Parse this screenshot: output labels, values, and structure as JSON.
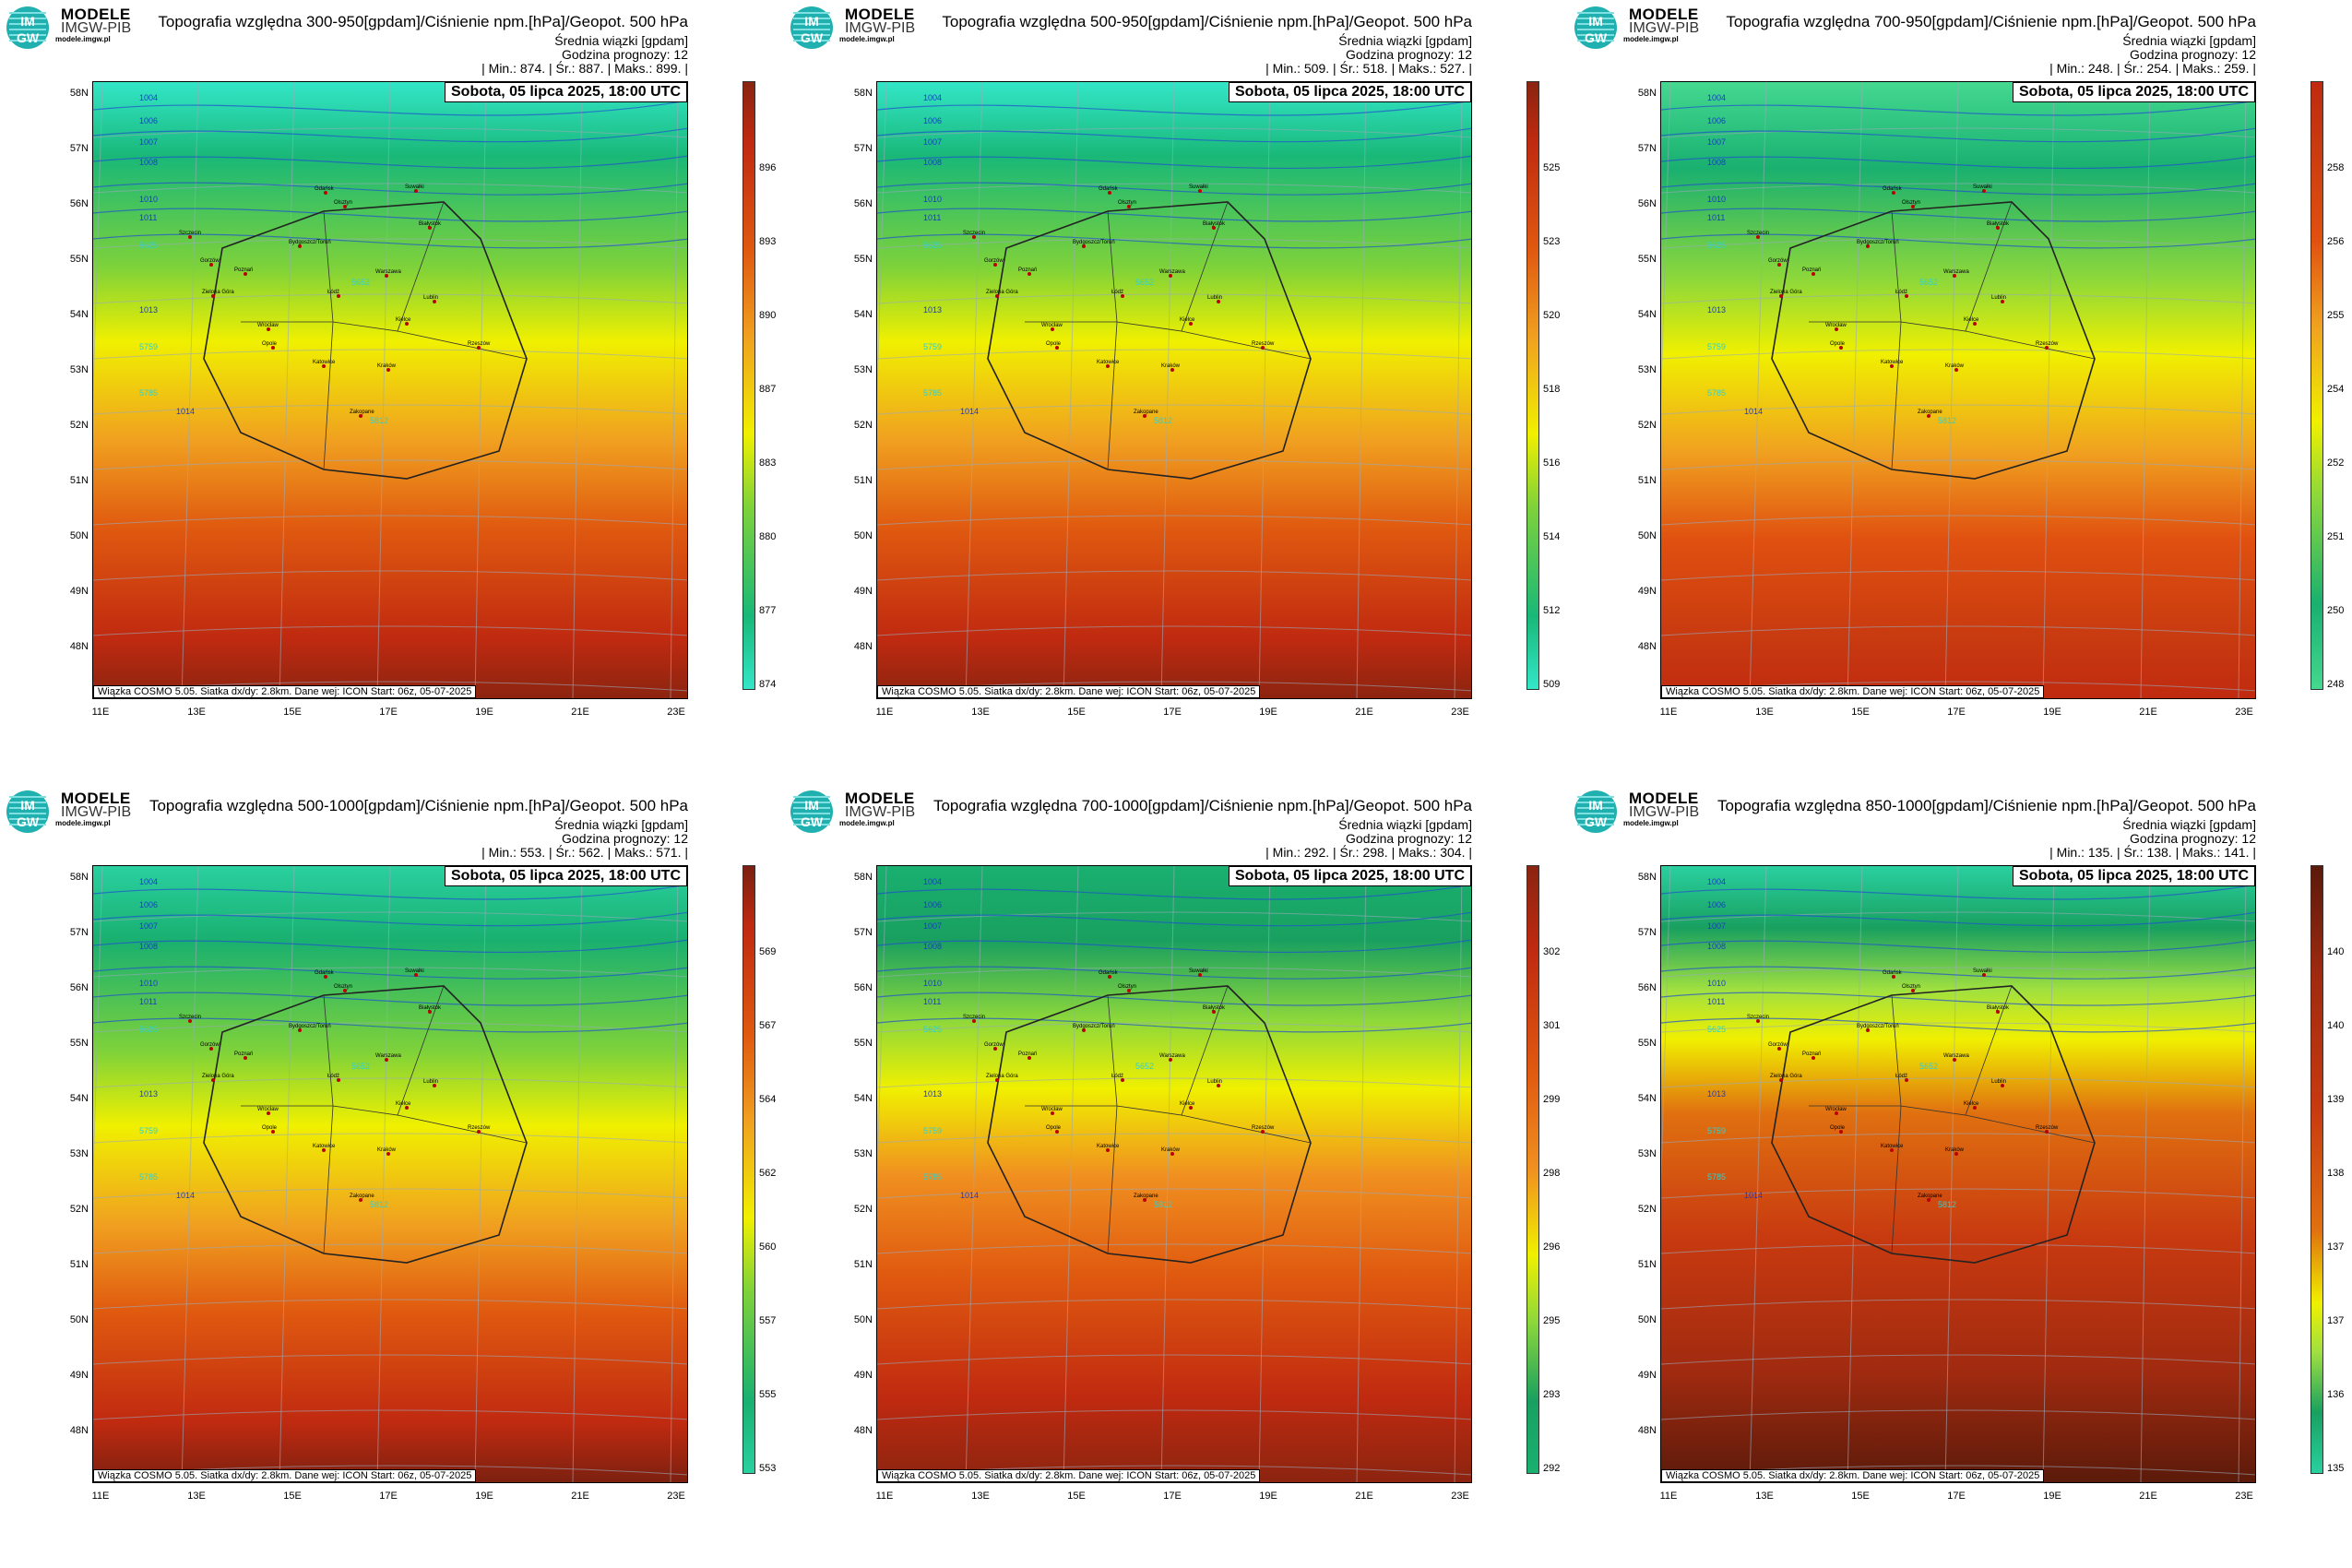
{
  "brand": {
    "title": "MODELE",
    "subtitle": "IMGW-PIB",
    "url": "modele.imgw.pl",
    "logo_text_top": "IM",
    "logo_text_bottom": "GW"
  },
  "common": {
    "subtitle": "Średnia wiązki [gpdam]",
    "forecast_hour": "Godzina prognozy: 12",
    "date": "Sobota, 05 lipca 2025, 18:00 UTC",
    "credit": "Wiązka COSMO 5.05. Siatka dx/dy: 2.8km. Dane wej: ICON Start: 06z, 05-07-2025",
    "lat_labels": [
      "58N",
      "57N",
      "56N",
      "55N",
      "54N",
      "53N",
      "52N",
      "51N",
      "50N",
      "49N",
      "48N"
    ],
    "lon_labels": [
      "11E",
      "13E",
      "15E",
      "17E",
      "19E",
      "21E",
      "23E"
    ],
    "cities": [
      "Gdańsk",
      "Olsztyn",
      "Suwałki",
      "Białystok",
      "Szczecin",
      "Gorzów",
      "Bydgoszcz/Toruń",
      "Poznań",
      "Warszawa",
      "Zielona Góra",
      "Łódź",
      "Lublin",
      "Wrocław",
      "Kielce",
      "Opole",
      "Katowice",
      "Kraków",
      "Rzeszów",
      "Zakopane"
    ],
    "isobar_labels": [
      "1004",
      "1006",
      "1007",
      "1008",
      "1010",
      "1011",
      "1013",
      "1014",
      "1016",
      "5625",
      "5652",
      "5759",
      "5785",
      "5812"
    ]
  },
  "panels": [
    {
      "title": "Topografia względna 300-950[gpdam]/Ciśnienie npm.[hPa]/Geopot. 500 hPa",
      "stats": "| Min.:  874. | Śr.:  887. | Maks.:  899. |",
      "colorbar_ticks": [
        "896",
        "893",
        "890",
        "887",
        "883",
        "880",
        "877",
        "874"
      ]
    },
    {
      "title": "Topografia względna 500-950[gpdam]/Ciśnienie npm.[hPa]/Geopot. 500 hPa",
      "stats": "| Min.:  509. | Śr.:  518. | Maks.:  527. |",
      "colorbar_ticks": [
        "525",
        "523",
        "520",
        "518",
        "516",
        "514",
        "512",
        "509"
      ]
    },
    {
      "title": "Topografia względna 700-950[gpdam]/Ciśnienie npm.[hPa]/Geopot. 500 hPa",
      "stats": "| Min.:  248. | Śr.:  254. | Maks.:  259. |",
      "colorbar_ticks": [
        "258",
        "256",
        "255",
        "254",
        "252",
        "251",
        "250",
        "248"
      ]
    },
    {
      "title": "Topografia względna 500-1000[gpdam]/Ciśnienie npm.[hPa]/Geopot. 500 hPa",
      "stats": "| Min.:  553. | Śr.:  562. | Maks.:  571. |",
      "colorbar_ticks": [
        "569",
        "567",
        "564",
        "562",
        "560",
        "557",
        "555",
        "553"
      ]
    },
    {
      "title": "Topografia względna 700-1000[gpdam]/Ciśnienie npm.[hPa]/Geopot. 500 hPa",
      "stats": "| Min.:  292. | Śr.:  298. | Maks.:  304. |",
      "colorbar_ticks": [
        "302",
        "301",
        "299",
        "298",
        "296",
        "295",
        "293",
        "292"
      ]
    },
    {
      "title": "Topografia względna 850-1000[gpdam]/Ciśnienie npm.[hPa]/Geopot. 500 hPa",
      "stats": "| Min.:  135. | Śr.:  138. | Maks.:  141. |",
      "colorbar_ticks": [
        "140",
        "140",
        "139",
        "138",
        "137",
        "137",
        "136",
        "135"
      ]
    }
  ],
  "colors": {
    "low": "#33e6c8",
    "green": "#1aa060",
    "yellow": "#f0f000",
    "orange": "#f07a10",
    "red": "#c82a10",
    "dark": "#5a1a0a"
  }
}
